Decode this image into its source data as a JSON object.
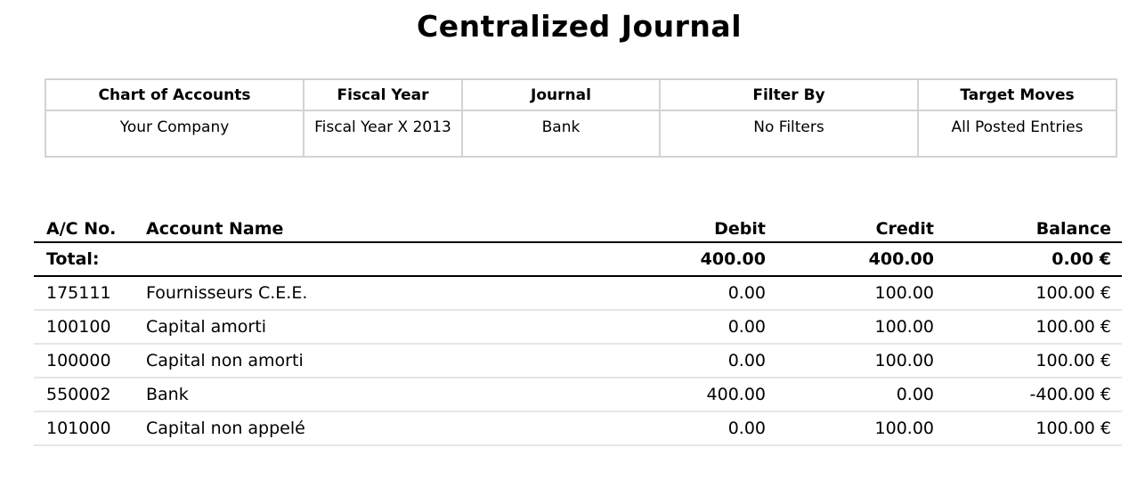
{
  "report": {
    "title": "Centralized Journal"
  },
  "info": {
    "headers": [
      "Chart of Accounts",
      "Fiscal Year",
      "Journal",
      "Filter By",
      "Target Moves"
    ],
    "values": [
      "Your Company",
      "Fiscal Year X 2013",
      "Bank",
      "No Filters",
      "All Posted Entries"
    ]
  },
  "table": {
    "headers": {
      "acc_no": "A/C No.",
      "acc_name": "Account Name",
      "debit": "Debit",
      "credit": "Credit",
      "balance": "Balance"
    },
    "total": {
      "label": "Total:",
      "debit": "400.00",
      "credit": "400.00",
      "balance": "0.00 €"
    },
    "rows": [
      {
        "acc_no": "175111",
        "name": "Fournisseurs C.E.E.",
        "debit": "0.00",
        "credit": "100.00",
        "balance": "100.00 €"
      },
      {
        "acc_no": "100100",
        "name": "Capital amorti",
        "debit": "0.00",
        "credit": "100.00",
        "balance": "100.00 €"
      },
      {
        "acc_no": "100000",
        "name": "Capital non amorti",
        "debit": "0.00",
        "credit": "100.00",
        "balance": "100.00 €"
      },
      {
        "acc_no": "550002",
        "name": "Bank",
        "debit": "400.00",
        "credit": "0.00",
        "balance": "-400.00 €"
      },
      {
        "acc_no": "101000",
        "name": "Capital non appelé",
        "debit": "0.00",
        "credit": "100.00",
        "balance": "100.00 €"
      }
    ]
  }
}
